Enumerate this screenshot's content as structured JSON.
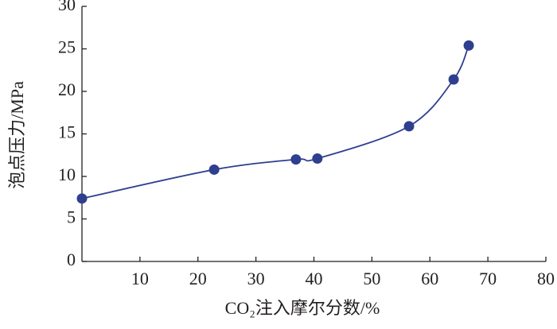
{
  "chart_data": {
    "type": "scatter",
    "xlabel": "CO₂注入摩尔分数/%",
    "ylabel": "泡点压力/MPa",
    "x": [
      0,
      22.8,
      36.9,
      40.6,
      56.4,
      64.1,
      66.7
    ],
    "series": [
      {
        "color": "#2e3f8f",
        "values": [
          7.4,
          10.8,
          12.0,
          12.1,
          15.9,
          21.4,
          25.4
        ]
      }
    ],
    "xlim": [
      0,
      80
    ],
    "xticks": [
      10,
      20,
      30,
      40,
      50,
      60,
      70,
      80
    ],
    "ylim": [
      0,
      30
    ],
    "yticks": [
      0,
      5,
      10,
      15,
      20,
      25,
      30
    ]
  }
}
